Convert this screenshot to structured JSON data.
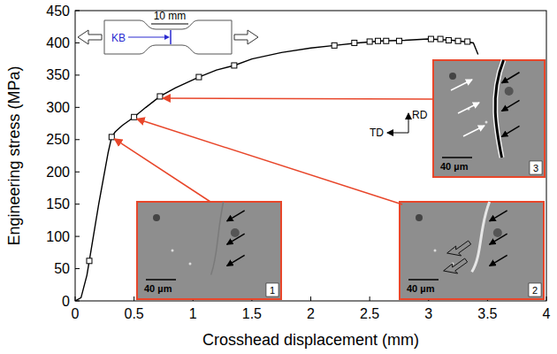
{
  "chart_data": {
    "type": "line",
    "x_label": "Crosshead displacement (mm)",
    "y_label": "Engineering stress (MPa)",
    "xlim": [
      0,
      4
    ],
    "ylim": [
      0,
      450
    ],
    "xticks": [
      0,
      0.5,
      1,
      1.5,
      2,
      2.5,
      3,
      3.5,
      4
    ],
    "yticks": [
      0,
      50,
      100,
      150,
      200,
      250,
      300,
      350,
      400,
      450
    ],
    "series": [
      {
        "type": "line",
        "color": "#000000",
        "marker": "none",
        "x": [
          0,
          0.05,
          0.1,
          0.12,
          0.2,
          0.28,
          0.31,
          0.34,
          0.4,
          0.5,
          0.6,
          0.72,
          0.85,
          1.05,
          1.2,
          1.35,
          1.5,
          1.75,
          2.0,
          2.2,
          2.4,
          2.6,
          2.8,
          3.0,
          3.1,
          3.2,
          3.3,
          3.38,
          3.42
        ],
        "values": [
          0,
          5,
          40,
          62,
          150,
          230,
          254,
          262,
          272,
          285,
          300,
          317,
          330,
          347,
          358,
          365,
          375,
          385,
          392,
          396,
          400,
          403,
          404,
          406,
          405,
          404,
          402,
          400,
          382
        ]
      },
      {
        "type": "scatter",
        "color": "#000000",
        "marker": "square",
        "x": [
          0.12,
          0.31,
          0.5,
          0.72,
          1.05,
          1.35,
          2.2,
          2.37,
          2.5,
          2.57,
          2.64,
          2.75,
          3.02,
          3.1,
          3.17,
          3.25,
          3.33
        ],
        "values": [
          62,
          254,
          285,
          317,
          347,
          365,
          396,
          400,
          402,
          403,
          403,
          403,
          406,
          406,
          404,
          403,
          402
        ]
      }
    ],
    "annotations": [
      {
        "text": "10 mm"
      },
      {
        "text": "KB",
        "color": "#2a2ad0"
      },
      {
        "text": "RD"
      },
      {
        "text": "TD"
      }
    ],
    "insets": [
      {
        "label": "1",
        "scale_bar": "40 µm",
        "x": 0.31,
        "y": 254,
        "color": "#e8462a"
      },
      {
        "label": "2",
        "scale_bar": "40 µm",
        "x": 0.5,
        "y": 285,
        "color": "#e8462a"
      },
      {
        "label": "3",
        "scale_bar": "40 µm",
        "x": 0.72,
        "y": 317,
        "color": "#e8462a"
      }
    ]
  }
}
